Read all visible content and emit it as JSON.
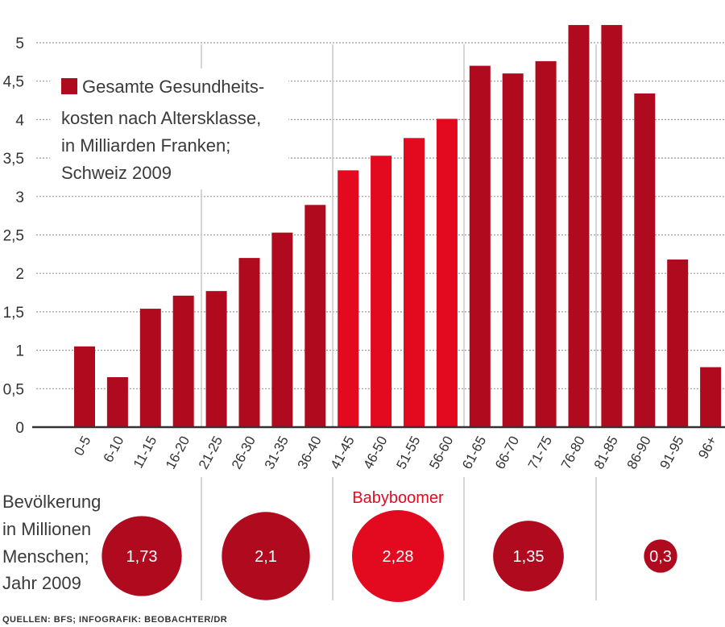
{
  "chart_data": {
    "type": "bar",
    "title": "",
    "xlabel": "",
    "ylabel": "",
    "ylim": [
      0,
      5
    ],
    "yticks": [
      "0",
      "0,5",
      "1",
      "1,5",
      "2",
      "2,5",
      "3",
      "3,5",
      "4",
      "4,5",
      "5"
    ],
    "grid": true,
    "categories": [
      "0-5",
      "6-10",
      "11-15",
      "16-20",
      "21-25",
      "26-30",
      "31-35",
      "36-40",
      "41-45",
      "46-50",
      "51-55",
      "56-60",
      "61-65",
      "66-70",
      "71-75",
      "76-80",
      "81-85",
      "86-90",
      "91-95",
      "96+"
    ],
    "values": [
      1.05,
      0.65,
      1.54,
      1.71,
      1.77,
      2.2,
      2.53,
      2.89,
      3.34,
      3.53,
      3.76,
      4.01,
      4.7,
      4.6,
      4.76,
      5.23,
      5.23,
      4.34,
      2.18,
      0.78
    ],
    "highlight_categories": [
      "41-45",
      "46-50",
      "51-55",
      "56-60"
    ],
    "legend": {
      "lines": [
        "Gesamte Gesundheits-",
        "kosten nach Altersklasse,",
        "in Milliarden Franken;",
        "Schweiz 2009"
      ],
      "placement": "top-left"
    },
    "population": {
      "label_lines": [
        "Bevölkerung",
        "in Millionen",
        "Menschen;",
        "Jahr 2009"
      ],
      "groups": [
        {
          "range": "0-20",
          "value": 1.73,
          "label": "1,73",
          "highlight": false
        },
        {
          "range": "21-40",
          "value": 2.1,
          "label": "2,1",
          "highlight": false
        },
        {
          "range": "41-60",
          "value": 2.28,
          "label": "2,28",
          "highlight": true,
          "annotation": "Babyboomer"
        },
        {
          "range": "61-80",
          "value": 1.35,
          "label": "1,35",
          "highlight": false
        },
        {
          "range": "81+",
          "value": 0.3,
          "label": "0,3",
          "highlight": false
        }
      ]
    },
    "source": "QUELLEN: BFS; INFOGRAFIK: BEOBACHTER/DR"
  },
  "colors": {
    "dark": "#b00a1e",
    "bright": "#e30a20",
    "grid": "#999999",
    "separator": "#c8c8c8"
  }
}
